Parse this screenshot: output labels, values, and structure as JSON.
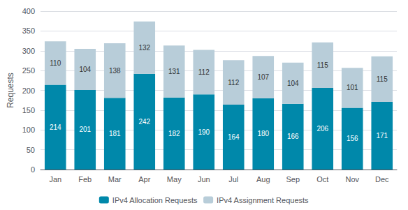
{
  "chart_data": {
    "type": "bar",
    "categories": [
      "Jan",
      "Feb",
      "Mar",
      "Apr",
      "May",
      "Jun",
      "Jul",
      "Aug",
      "Sep",
      "Oct",
      "Nov",
      "Dec"
    ],
    "series": [
      {
        "name": "IPv4 Allocation Requests",
        "color": "#0088aa",
        "values": [
          214,
          201,
          181,
          242,
          182,
          190,
          164,
          180,
          166,
          206,
          156,
          171
        ]
      },
      {
        "name": "IPv4 Assignment Requests",
        "color": "#b8cdd9",
        "values": [
          110,
          104,
          138,
          132,
          131,
          112,
          112,
          107,
          104,
          115,
          101,
          115
        ]
      }
    ],
    "ylabel": "Requests",
    "ylim": [
      0,
      400
    ],
    "yticks": [
      0,
      50,
      100,
      150,
      200,
      250,
      300,
      350,
      400
    ],
    "stacked": true,
    "grid": true,
    "legend": "bottom",
    "data_labels": true
  }
}
